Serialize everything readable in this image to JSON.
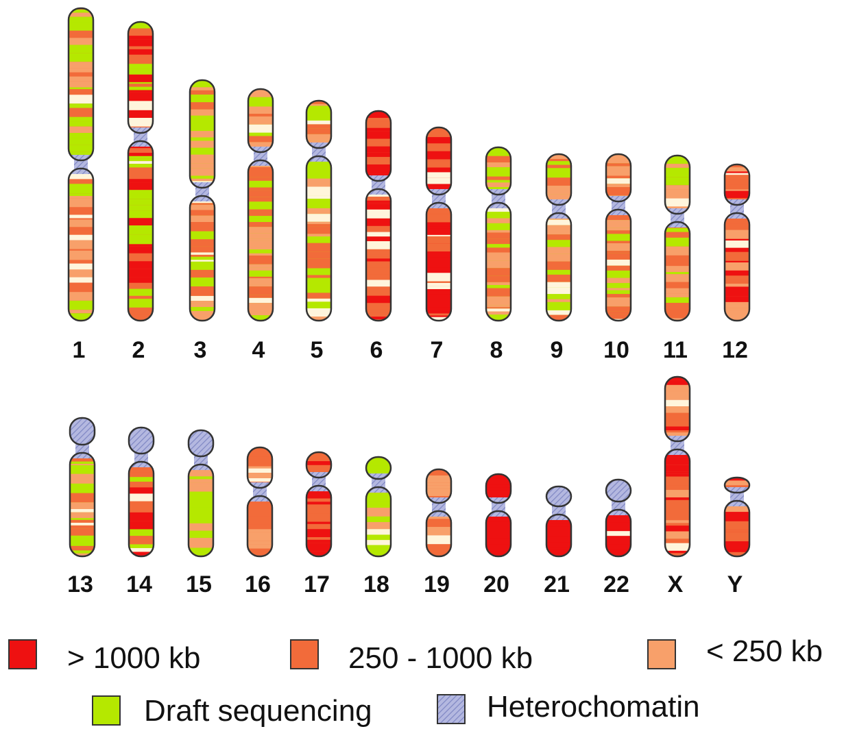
{
  "chromosomes": [
    "1",
    "2",
    "3",
    "4",
    "5",
    "6",
    "7",
    "8",
    "9",
    "10",
    "11",
    "12",
    "13",
    "14",
    "15",
    "16",
    "17",
    "18",
    "19",
    "20",
    "21",
    "22",
    "X",
    "Y"
  ],
  "legend": [
    ">  1000 kb",
    "250 - 1000 kb",
    "< 250 kb",
    "Draft sequencing",
    "Heterochomatin"
  ]
}
